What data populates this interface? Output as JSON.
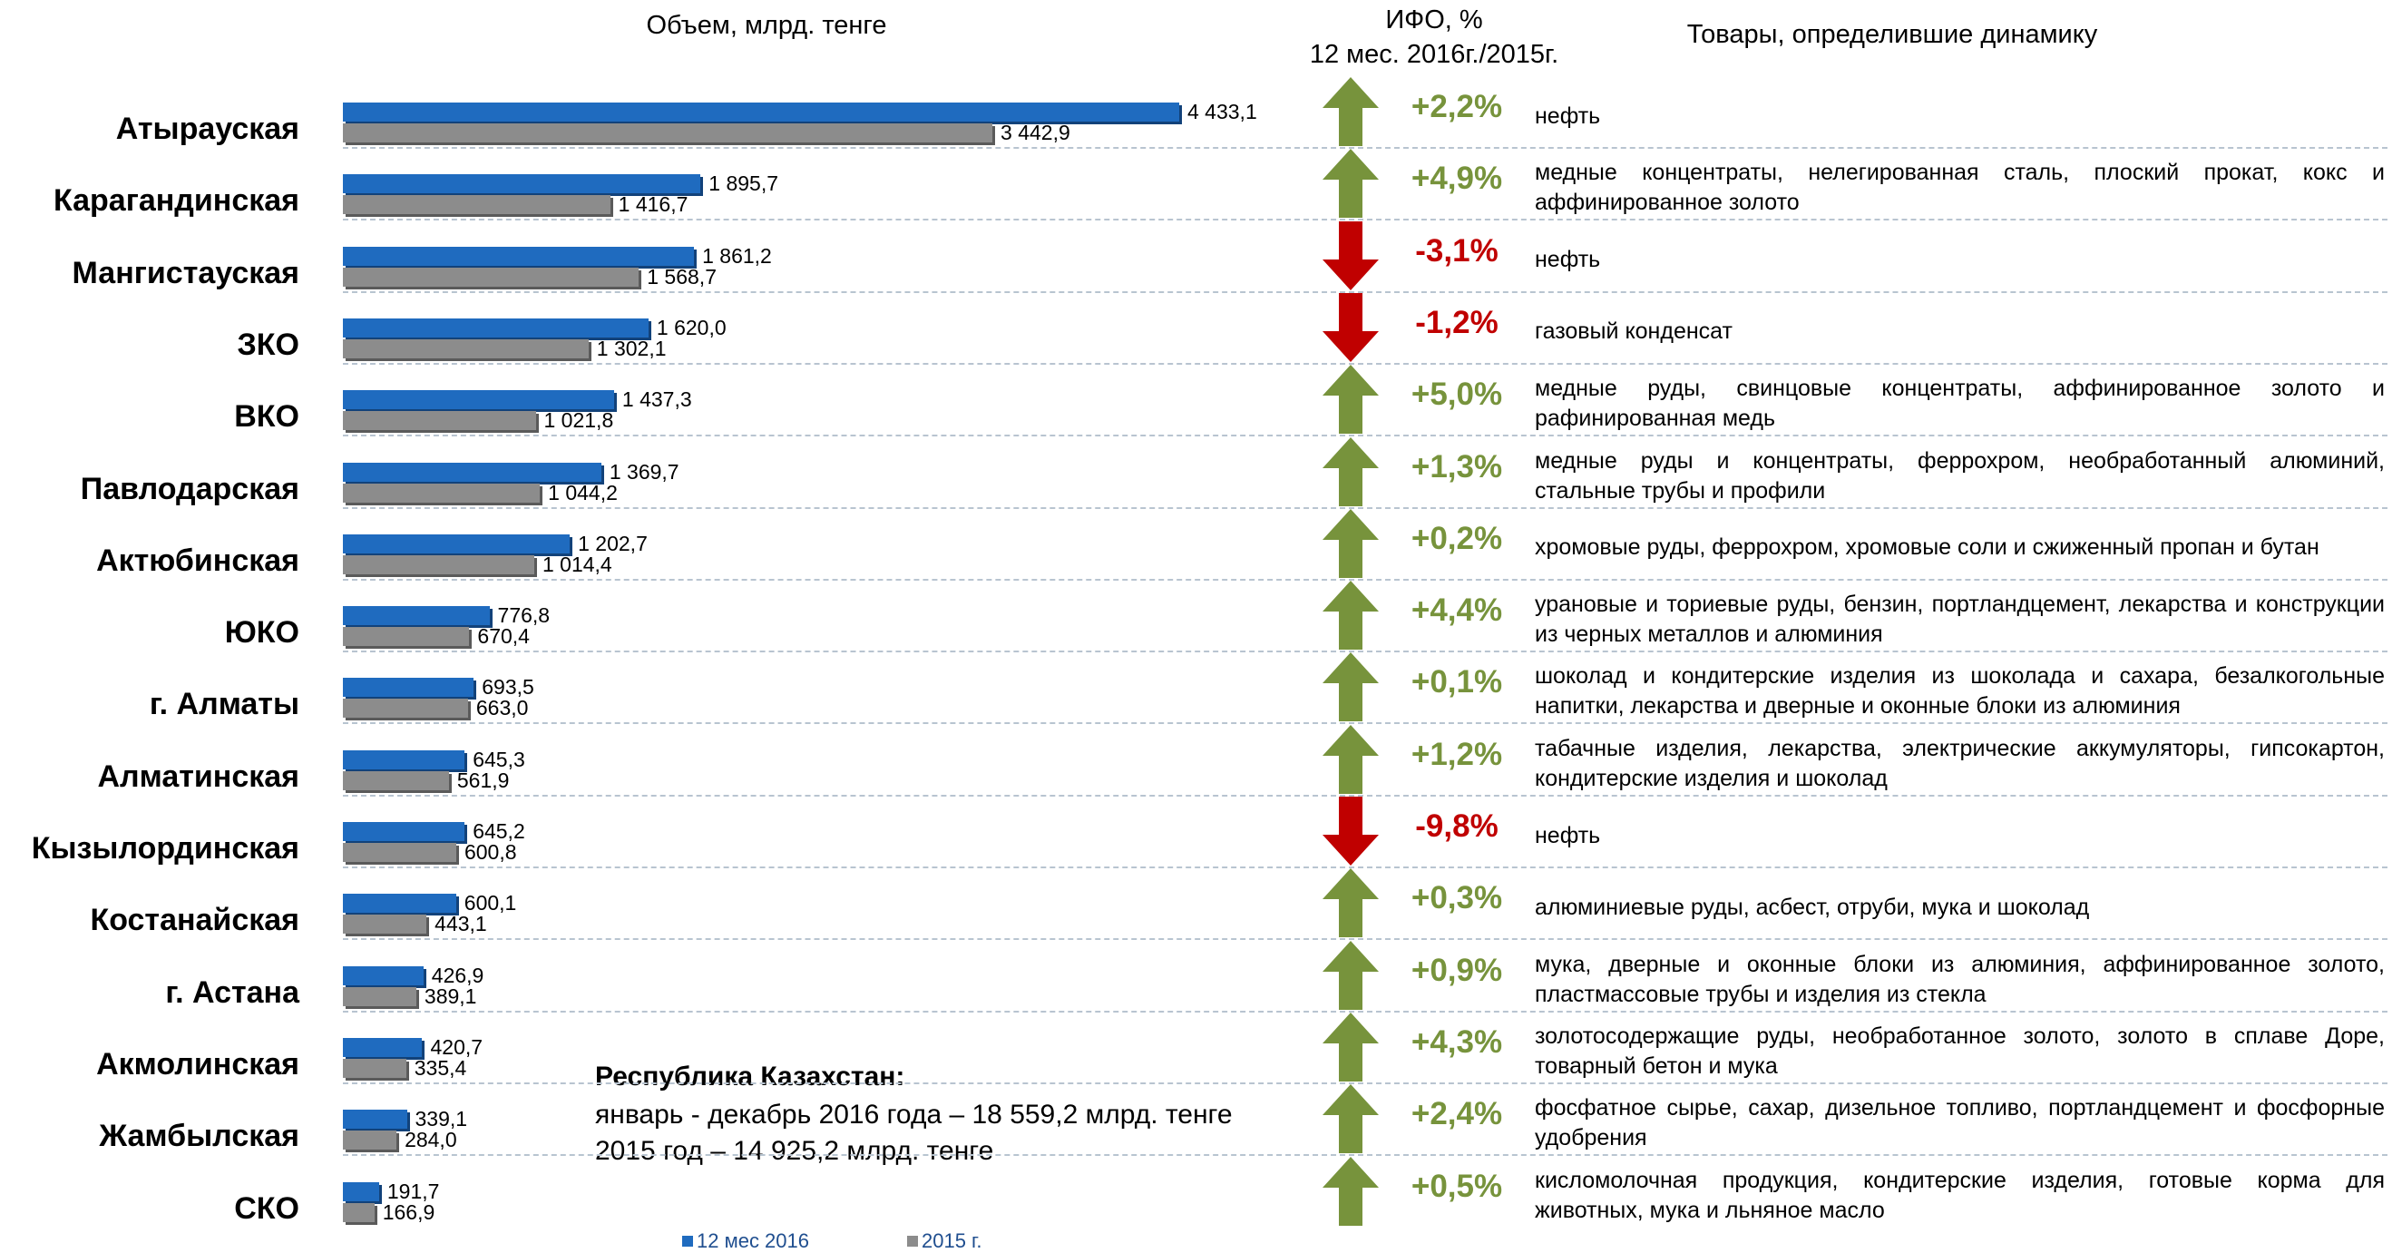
{
  "chart_data": {
    "type": "bar",
    "orientation": "horizontal",
    "title": "Объем, млрд. тенге",
    "categories": [
      "Атырауская",
      "Карагандинская",
      "Мангистауская",
      "ЗКО",
      "ВКО",
      "Павлодарская",
      "Актюбинская",
      "ЮКО",
      "г. Алматы",
      "Алматинская",
      "Кызылординская",
      "Костанайская",
      "г. Астана",
      "Акмолинская",
      "Жамбылская",
      "СКО"
    ],
    "series": [
      {
        "name": "12 мес 2016",
        "color": "#1f6bbf",
        "values": [
          4433.1,
          1895.7,
          1861.2,
          1620.0,
          1437.3,
          1369.7,
          1202.7,
          776.8,
          693.5,
          645.3,
          645.2,
          600.1,
          426.9,
          420.7,
          339.1,
          191.7
        ],
        "value_labels": [
          "4 433,1",
          "1 895,7",
          "1 861,2",
          "1 620,0",
          "1 437,3",
          "1 369,7",
          "1 202,7",
          "776,8",
          "693,5",
          "645,3",
          "645,2",
          "600,1",
          "426,9",
          "420,7",
          "339,1",
          "191,7"
        ]
      },
      {
        "name": "2015 г.",
        "color": "#8c8c8c",
        "values": [
          3442.9,
          1416.7,
          1568.7,
          1302.1,
          1021.8,
          1044.2,
          1014.4,
          670.4,
          663.0,
          561.9,
          600.8,
          443.1,
          389.1,
          335.4,
          284.0,
          166.9
        ],
        "value_labels": [
          "3 442,9",
          "1 416,7",
          "1 568,7",
          "1 302,1",
          "1 021,8",
          "1 044,2",
          "1 014,4",
          "670,4",
          "663,0",
          "561,9",
          "600,8",
          "443,1",
          "389,1",
          "335,4",
          "284,0",
          "166,9"
        ]
      }
    ]
  },
  "ifo": {
    "title_lines": [
      "ИФО, %",
      "12 мес. 2016г./2015г."
    ],
    "up_color": "#77933c",
    "down_color": "#c00000",
    "values": [
      2.2,
      4.9,
      -3.1,
      -1.2,
      5.0,
      1.3,
      0.2,
      4.4,
      0.1,
      1.2,
      -9.8,
      0.3,
      0.9,
      4.3,
      2.4,
      0.5
    ],
    "value_labels": [
      "+2,2%",
      "+4,9%",
      "-3,1%",
      "-1,2%",
      "+5,0%",
      "+1,3%",
      "+0,2%",
      "+4,4%",
      "+0,1%",
      "+1,2%",
      "-9,8%",
      "+0,3%",
      "+0,9%",
      "+4,3%",
      "+2,4%",
      "+0,5%"
    ]
  },
  "goods": {
    "title": "Товары, определившие динамику",
    "items": [
      "нефть",
      "медные концентраты, нелегированная сталь, плоский прокат, кокс и аффинированное золото",
      "нефть",
      "газовый конденсат",
      "медные руды, свинцовые концентраты, аффинированное золото и рафинированная медь",
      "медные руды и концентраты, феррохром, необработанный алюминий, стальные трубы и профили",
      "хромовые руды, феррохром,  хромовые соли и сжиженный пропан и бутан",
      "урановые и ториевые руды, бензин, портландцемент, лекарства и конструкции из черных металлов и алюминия",
      "шоколад и кондитерские изделия из шоколада и сахара, безалкогольные напитки, лекарства и дверные и оконные блоки из алюминия",
      "табачные изделия, лекарства, электрические аккумуляторы, гипсокартон, кондитерские изделия и шоколад",
      "нефть",
      "алюминиевые руды, асбест, отруби, мука и шоколад",
      "мука, дверные и оконные блоки из алюминия, аффинированное золото, пластмассовые трубы и изделия из стекла",
      "золотосодержащие руды, необработанное золото, золото в сплаве Доре, товарный бетон и мука",
      "фосфатное сырье, сахар, дизельное топливо, портландцемент и фосфорные удобрения",
      "кисломолочная продукция, кондитерские изделия, готовые корма для животных, мука и льняное масло"
    ]
  },
  "summary": {
    "title": "Республика Казахстан:",
    "lines": [
      "январь - декабрь 2016 года – 18 559,2 млрд. тенге",
      "2015 год – 14 925,2 млрд. тенге"
    ]
  }
}
